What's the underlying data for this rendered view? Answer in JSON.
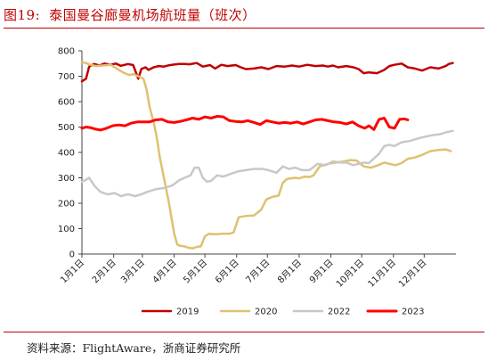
{
  "figure": {
    "number": "图19:",
    "title": "泰国曼谷廊曼机场航班量（班次）",
    "source": "资料来源：FlightAware，浙商证券研究所"
  },
  "chart_data": {
    "type": "line",
    "title": "泰国曼谷廊曼机场航班量（班次）",
    "xlabel": "",
    "ylabel": "",
    "ylim": [
      0,
      800
    ],
    "yticks": [
      0,
      100,
      200,
      300,
      400,
      500,
      600,
      700,
      800
    ],
    "xticks": [
      "1月1日",
      "2月1日",
      "3月1日",
      "4月1日",
      "5月1日",
      "6月1日",
      "7月1日",
      "8月1日",
      "9月1日",
      "10月1日",
      "11月1日",
      "12月1日"
    ],
    "grid": false,
    "legend_position": "bottom",
    "x_unit": "day of year (0 = 1月1日)",
    "series": [
      {
        "name": "2019",
        "color": "#c00000",
        "stroke_width": 2.5,
        "x": [
          0,
          4,
          7,
          12,
          17,
          22,
          28,
          33,
          38,
          45,
          50,
          55,
          58,
          62,
          65,
          70,
          75,
          80,
          85,
          90,
          95,
          100,
          105,
          112,
          118,
          125,
          130,
          136,
          142,
          150,
          155,
          160,
          168,
          175,
          182,
          190,
          198,
          205,
          212,
          220,
          228,
          235,
          240,
          245,
          250,
          258,
          265,
          270,
          275,
          280,
          288,
          295,
          300,
          305,
          312,
          318,
          325,
          332,
          340,
          348,
          355,
          358,
          362
        ],
        "y": [
          680,
          690,
          738,
          748,
          742,
          750,
          745,
          750,
          741,
          748,
          744,
          690,
          728,
          735,
          725,
          735,
          740,
          738,
          743,
          746,
          748,
          748,
          747,
          752,
          738,
          744,
          730,
          745,
          740,
          744,
          735,
          728,
          730,
          735,
          728,
          740,
          738,
          742,
          738,
          745,
          740,
          742,
          738,
          742,
          735,
          740,
          735,
          728,
          712,
          715,
          712,
          725,
          740,
          745,
          750,
          735,
          730,
          722,
          735,
          730,
          740,
          748,
          752
        ]
      },
      {
        "name": "2020",
        "color": "#e0c070",
        "stroke_width": 2.5,
        "x": [
          0,
          4,
          8,
          14,
          20,
          28,
          34,
          40,
          46,
          50,
          55,
          60,
          63,
          66,
          70,
          73,
          76,
          80,
          85,
          90,
          93,
          96,
          100,
          104,
          108,
          112,
          116,
          120,
          124,
          128,
          132,
          136,
          140,
          144,
          148,
          153,
          160,
          168,
          175,
          180,
          186,
          192,
          196,
          200,
          204,
          208,
          212,
          218,
          222,
          226,
          232,
          240,
          248,
          256,
          262,
          268,
          275,
          282,
          288,
          295,
          300,
          306,
          312,
          318,
          325,
          332,
          340,
          348,
          355,
          360
        ],
        "y": [
          755,
          752,
          745,
          740,
          742,
          745,
          730,
          715,
          705,
          708,
          700,
          690,
          650,
          580,
          520,
          460,
          380,
          300,
          200,
          80,
          38,
          32,
          30,
          25,
          22,
          28,
          30,
          70,
          80,
          78,
          78,
          80,
          80,
          80,
          85,
          145,
          150,
          152,
          175,
          215,
          225,
          230,
          280,
          295,
          298,
          300,
          298,
          305,
          303,
          310,
          345,
          355,
          360,
          365,
          370,
          368,
          345,
          340,
          348,
          360,
          355,
          350,
          358,
          375,
          380,
          390,
          405,
          410,
          412,
          405
        ]
      },
      {
        "name": "2022",
        "color": "#c8c8c8",
        "stroke_width": 2.5,
        "x": [
          0,
          3,
          7,
          12,
          18,
          25,
          32,
          38,
          45,
          52,
          58,
          64,
          72,
          80,
          88,
          95,
          100,
          106,
          110,
          114,
          118,
          122,
          126,
          132,
          138,
          145,
          152,
          160,
          168,
          176,
          182,
          190,
          196,
          202,
          208,
          215,
          222,
          230,
          238,
          245,
          252,
          258,
          265,
          270,
          275,
          280,
          286,
          290,
          295,
          300,
          305,
          312,
          320,
          328,
          335,
          342,
          350,
          356,
          362
        ],
        "y": [
          285,
          290,
          300,
          270,
          245,
          235,
          240,
          228,
          235,
          228,
          235,
          245,
          255,
          260,
          270,
          290,
          300,
          310,
          340,
          340,
          300,
          285,
          288,
          310,
          305,
          315,
          325,
          330,
          335,
          335,
          330,
          320,
          345,
          335,
          340,
          330,
          330,
          355,
          350,
          365,
          360,
          360,
          350,
          355,
          360,
          358,
          380,
          395,
          425,
          430,
          425,
          440,
          445,
          455,
          462,
          468,
          472,
          480,
          485
        ]
      },
      {
        "name": "2023",
        "color": "#ff0000",
        "stroke_width": 3,
        "x": [
          0,
          4,
          8,
          13,
          18,
          24,
          30,
          36,
          42,
          48,
          54,
          60,
          66,
          72,
          78,
          84,
          90,
          96,
          102,
          108,
          114,
          120,
          126,
          132,
          138,
          144,
          150,
          156,
          162,
          168,
          174,
          180,
          186,
          192,
          198,
          204,
          210,
          216,
          222,
          228,
          234,
          240,
          246,
          252,
          258,
          264,
          270,
          276,
          280,
          285,
          290,
          295,
          300,
          305,
          310,
          315,
          318
        ],
        "y": [
          495,
          500,
          498,
          492,
          488,
          495,
          505,
          508,
          505,
          515,
          520,
          520,
          520,
          528,
          530,
          520,
          518,
          522,
          528,
          535,
          530,
          540,
          535,
          542,
          540,
          525,
          522,
          520,
          525,
          518,
          510,
          525,
          520,
          515,
          518,
          515,
          520,
          512,
          520,
          528,
          530,
          525,
          520,
          518,
          512,
          520,
          505,
          495,
          505,
          490,
          530,
          535,
          500,
          495,
          530,
          532,
          528
        ]
      }
    ]
  }
}
